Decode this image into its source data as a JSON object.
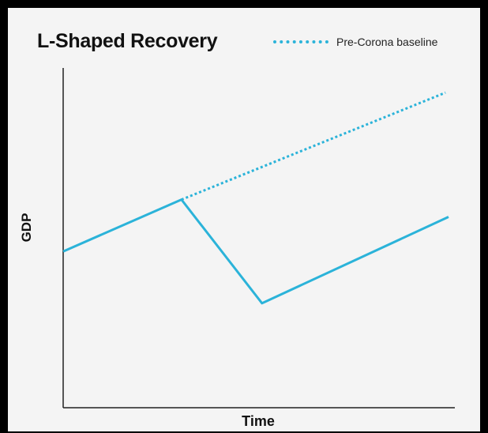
{
  "chart_data": {
    "type": "line",
    "title": "L-Shaped Recovery",
    "xlabel": "Time",
    "ylabel": "GDP",
    "grid": false,
    "legend_position": "top-right",
    "xlim": [
      0,
      10
    ],
    "ylim": [
      0,
      10
    ],
    "series": [
      {
        "name": "",
        "style": "solid",
        "color": "#2bb3d9",
        "x": [
          0,
          3.07,
          5.16,
          10
        ],
        "y": [
          4.0,
          5.5,
          2.5,
          5.0
        ]
      },
      {
        "name": "Pre-Corona baseline",
        "style": "dotted",
        "color": "#2bb3d9",
        "x": [
          3.07,
          9.92
        ],
        "y": [
          5.5,
          8.6
        ]
      }
    ]
  }
}
